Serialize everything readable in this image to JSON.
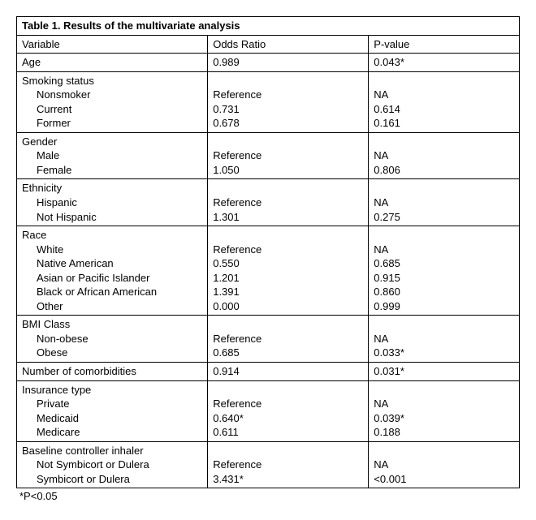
{
  "table": {
    "title": "Table 1. Results of the multivariate analysis",
    "headers": {
      "variable": "Variable",
      "odds_ratio": "Odds Ratio",
      "pvalue": "P-value"
    },
    "footnote": "*P<0.05",
    "rows": {
      "age": {
        "label": "Age",
        "or": "0.989",
        "p": "0.043*"
      },
      "smoking": {
        "label": "Smoking status",
        "nonsmoker": {
          "label": "Nonsmoker",
          "or": "Reference",
          "p": "NA"
        },
        "current": {
          "label": "Current",
          "or": "0.731",
          "p": "0.614"
        },
        "former": {
          "label": "Former",
          "or": "0.678",
          "p": "0.161"
        }
      },
      "gender": {
        "label": "Gender",
        "male": {
          "label": "Male",
          "or": "Reference",
          "p": "NA"
        },
        "female": {
          "label": "Female",
          "or": "1.050",
          "p": "0.806"
        }
      },
      "ethnicity": {
        "label": "Ethnicity",
        "hispanic": {
          "label": "Hispanic",
          "or": "Reference",
          "p": "NA"
        },
        "nothispanic": {
          "label": "Not Hispanic",
          "or": "1.301",
          "p": "0.275"
        }
      },
      "race": {
        "label": "Race",
        "white": {
          "label": "White",
          "or": "Reference",
          "p": "NA"
        },
        "native": {
          "label": "Native American",
          "or": "0.550",
          "p": "0.685"
        },
        "asian": {
          "label": "Asian or Pacific Islander",
          "or": "1.201",
          "p": "0.915"
        },
        "black": {
          "label": "Black or African American",
          "or": "1.391",
          "p": "0.860"
        },
        "other": {
          "label": "Other",
          "or": "0.000",
          "p": "0.999"
        }
      },
      "bmi": {
        "label": "BMI Class",
        "nonobese": {
          "label": "Non-obese",
          "or": "Reference",
          "p": "NA"
        },
        "obese": {
          "label": "Obese",
          "or": "0.685",
          "p": "0.033*"
        }
      },
      "comorbid": {
        "label": "Number of comorbidities",
        "or": "0.914",
        "p": "0.031*"
      },
      "insurance": {
        "label": "Insurance type",
        "private": {
          "label": "Private",
          "or": "Reference",
          "p": "NA"
        },
        "medicaid": {
          "label": "Medicaid",
          "or": "0.640*",
          "p": "0.039*"
        },
        "medicare": {
          "label": "Medicare",
          "or": "0.611",
          "p": "0.188"
        }
      },
      "inhaler": {
        "label": "Baseline controller inhaler",
        "notsd": {
          "label": "Not Symbicort or Dulera",
          "or": "Reference",
          "p": "NA"
        },
        "sd": {
          "label": "Symbicort or Dulera",
          "or": "3.431*",
          "p": "<0.001"
        }
      }
    }
  }
}
